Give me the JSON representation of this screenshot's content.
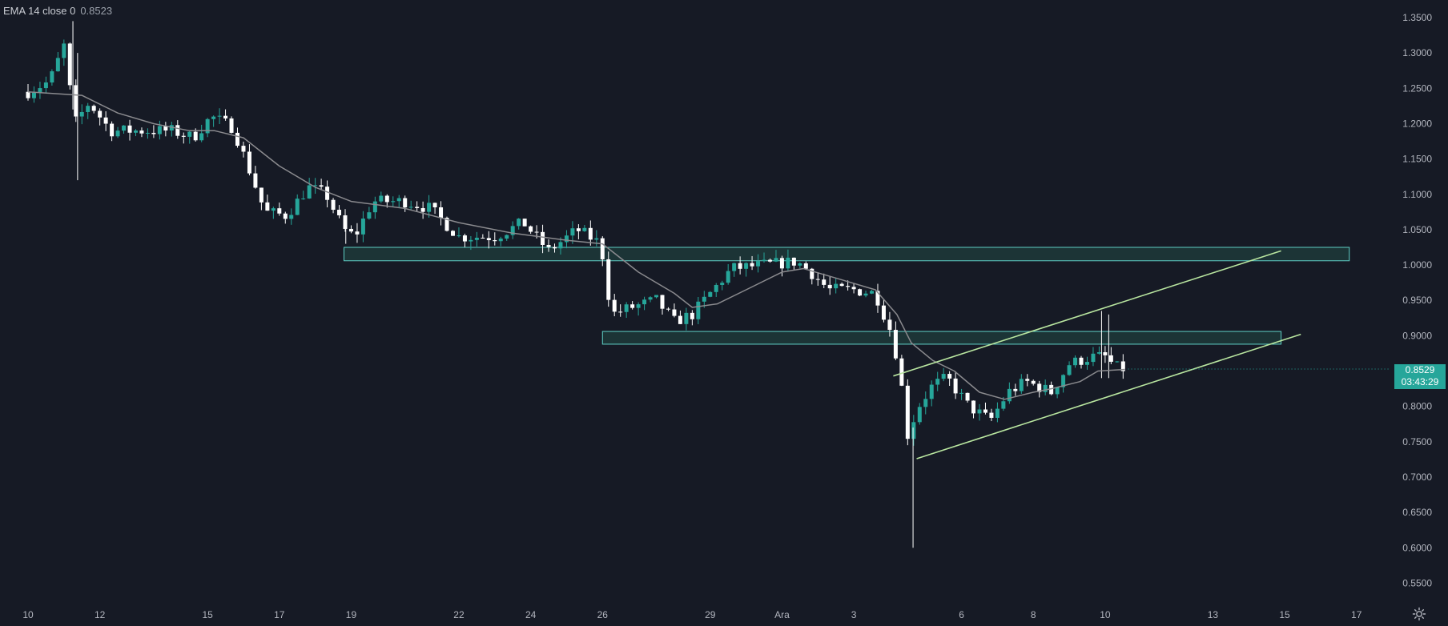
{
  "legend": {
    "indicator": "EMA 14 close 0",
    "value": "0.8523"
  },
  "current_price": {
    "price": "0.8529",
    "countdown": "03:43:29"
  },
  "colors": {
    "background": "#161a25",
    "up": "#26a69a",
    "down": "#ffffff",
    "ema": "#8a8a8e",
    "zone_fill": "#224a45",
    "zone_stroke": "#5fd0c6",
    "channel": "#b9e6a0",
    "axis_text": "#b2b5be"
  },
  "icons": {
    "settings": "settings-gear-icon"
  },
  "chart_data": {
    "type": "candlestick",
    "title": "",
    "xlabel": "",
    "ylabel": "",
    "ylim": [
      0.53,
      1.36
    ],
    "grid": false,
    "y_ticks": [
      "1.3500",
      "1.3000",
      "1.2500",
      "1.2000",
      "1.1500",
      "1.1000",
      "1.0500",
      "1.0000",
      "0.9500",
      "0.9000",
      "0.8500",
      "0.8000",
      "0.7500",
      "0.7000",
      "0.6500",
      "0.6000",
      "0.5500"
    ],
    "x_ticks": [
      {
        "label": "10",
        "day": 0
      },
      {
        "label": "12",
        "day": 2
      },
      {
        "label": "15",
        "day": 5
      },
      {
        "label": "17",
        "day": 7
      },
      {
        "label": "19",
        "day": 9
      },
      {
        "label": "22",
        "day": 12
      },
      {
        "label": "24",
        "day": 14
      },
      {
        "label": "26",
        "day": 16
      },
      {
        "label": "29",
        "day": 19
      },
      {
        "label": "Ara",
        "day": 21
      },
      {
        "label": "3",
        "day": 23
      },
      {
        "label": "6",
        "day": 26
      },
      {
        "label": "8",
        "day": 28
      },
      {
        "label": "10",
        "day": 30
      },
      {
        "label": "13",
        "day": 33
      },
      {
        "label": "15",
        "day": 35
      },
      {
        "label": "17",
        "day": 37
      }
    ],
    "x_range_days": [
      -0.25,
      38.2
    ],
    "anchors": [
      {
        "day": 0.0,
        "price": 1.245
      },
      {
        "day": 0.6,
        "price": 1.26
      },
      {
        "day": 1.0,
        "price": 1.31
      },
      {
        "day": 1.3,
        "price": 1.2
      },
      {
        "day": 1.7,
        "price": 1.23
      },
      {
        "day": 2.3,
        "price": 1.19
      },
      {
        "day": 3.0,
        "price": 1.19
      },
      {
        "day": 4.0,
        "price": 1.19
      },
      {
        "day": 4.6,
        "price": 1.18
      },
      {
        "day": 5.1,
        "price": 1.21
      },
      {
        "day": 5.7,
        "price": 1.195
      },
      {
        "day": 6.2,
        "price": 1.13
      },
      {
        "day": 6.6,
        "price": 1.075
      },
      {
        "day": 7.2,
        "price": 1.07
      },
      {
        "day": 7.8,
        "price": 1.11
      },
      {
        "day": 8.3,
        "price": 1.1
      },
      {
        "day": 8.8,
        "price": 1.05
      },
      {
        "day": 9.1,
        "price": 1.04
      },
      {
        "day": 9.6,
        "price": 1.09
      },
      {
        "day": 10.5,
        "price": 1.09
      },
      {
        "day": 11.2,
        "price": 1.08
      },
      {
        "day": 12.0,
        "price": 1.04
      },
      {
        "day": 13.0,
        "price": 1.04
      },
      {
        "day": 13.8,
        "price": 1.06
      },
      {
        "day": 14.5,
        "price": 1.02
      },
      {
        "day": 15.3,
        "price": 1.05
      },
      {
        "day": 15.95,
        "price": 1.03
      },
      {
        "day": 16.25,
        "price": 0.93
      },
      {
        "day": 16.8,
        "price": 0.94
      },
      {
        "day": 17.5,
        "price": 0.95
      },
      {
        "day": 18.0,
        "price": 0.92
      },
      {
        "day": 18.5,
        "price": 0.93
      },
      {
        "day": 19.0,
        "price": 0.96
      },
      {
        "day": 19.6,
        "price": 0.995
      },
      {
        "day": 20.5,
        "price": 1.0
      },
      {
        "day": 21.4,
        "price": 1.005
      },
      {
        "day": 21.8,
        "price": 0.99
      },
      {
        "day": 22.3,
        "price": 0.965
      },
      {
        "day": 23.0,
        "price": 0.965
      },
      {
        "day": 23.6,
        "price": 0.96
      },
      {
        "day": 24.0,
        "price": 0.91
      },
      {
        "day": 24.25,
        "price": 0.86
      },
      {
        "day": 24.5,
        "price": 0.76
      },
      {
        "day": 24.8,
        "price": 0.8
      },
      {
        "day": 25.2,
        "price": 0.83
      },
      {
        "day": 25.6,
        "price": 0.84
      },
      {
        "day": 26.2,
        "price": 0.8
      },
      {
        "day": 26.8,
        "price": 0.78
      },
      {
        "day": 27.3,
        "price": 0.82
      },
      {
        "day": 27.8,
        "price": 0.835
      },
      {
        "day": 28.5,
        "price": 0.82
      },
      {
        "day": 29.0,
        "price": 0.86
      },
      {
        "day": 29.6,
        "price": 0.87
      },
      {
        "day": 30.0,
        "price": 0.87
      },
      {
        "day": 30.3,
        "price": 0.855
      },
      {
        "day": 30.55,
        "price": 0.8529
      }
    ],
    "wick_spikes": [
      {
        "day": 1.25,
        "high": 1.345,
        "low": 1.22
      },
      {
        "day": 1.38,
        "high": 1.3,
        "low": 1.12
      },
      {
        "day": 8.85,
        "high": 1.07,
        "low": 1.03
      },
      {
        "day": 24.65,
        "high": 0.77,
        "low": 0.6
      },
      {
        "day": 29.9,
        "high": 0.935,
        "low": 0.84
      },
      {
        "day": 30.1,
        "high": 0.93,
        "low": 0.84
      }
    ],
    "ema": {
      "name": "EMA 14",
      "points": [
        {
          "day": 0,
          "price": 1.245
        },
        {
          "day": 1.5,
          "price": 1.24
        },
        {
          "day": 2.5,
          "price": 1.215
        },
        {
          "day": 3.5,
          "price": 1.2
        },
        {
          "day": 4.5,
          "price": 1.19
        },
        {
          "day": 5.2,
          "price": 1.19
        },
        {
          "day": 6.0,
          "price": 1.18
        },
        {
          "day": 7.0,
          "price": 1.14
        },
        {
          "day": 8.0,
          "price": 1.11
        },
        {
          "day": 9.0,
          "price": 1.09
        },
        {
          "day": 10.5,
          "price": 1.08
        },
        {
          "day": 12.0,
          "price": 1.06
        },
        {
          "day": 13.5,
          "price": 1.045
        },
        {
          "day": 15.0,
          "price": 1.035
        },
        {
          "day": 16.0,
          "price": 1.03
        },
        {
          "day": 17.0,
          "price": 0.99
        },
        {
          "day": 18.0,
          "price": 0.96
        },
        {
          "day": 18.5,
          "price": 0.94
        },
        {
          "day": 19.2,
          "price": 0.945
        },
        {
          "day": 20.0,
          "price": 0.965
        },
        {
          "day": 21.0,
          "price": 0.99
        },
        {
          "day": 21.6,
          "price": 0.995
        },
        {
          "day": 22.6,
          "price": 0.98
        },
        {
          "day": 23.6,
          "price": 0.965
        },
        {
          "day": 24.2,
          "price": 0.93
        },
        {
          "day": 24.6,
          "price": 0.89
        },
        {
          "day": 25.2,
          "price": 0.865
        },
        {
          "day": 25.8,
          "price": 0.85
        },
        {
          "day": 26.5,
          "price": 0.82
        },
        {
          "day": 27.2,
          "price": 0.81
        },
        {
          "day": 28.0,
          "price": 0.82
        },
        {
          "day": 28.5,
          "price": 0.825
        },
        {
          "day": 29.3,
          "price": 0.835
        },
        {
          "day": 29.8,
          "price": 0.85
        },
        {
          "day": 30.55,
          "price": 0.8523
        }
      ]
    },
    "zones": [
      {
        "name": "upper-zone",
        "from_day": 8.8,
        "to_day": 36.8,
        "top": 1.025,
        "bottom": 1.006
      },
      {
        "name": "lower-zone",
        "from_day": 16.0,
        "to_day": 34.9,
        "top": 0.906,
        "bottom": 0.888
      }
    ],
    "channel_lines": [
      {
        "name": "channel-upper",
        "from": {
          "day": 24.1,
          "price": 0.843
        },
        "to": {
          "day": 34.9,
          "price": 1.02
        }
      },
      {
        "name": "channel-lower",
        "from": {
          "day": 24.75,
          "price": 0.726
        },
        "to": {
          "day": 35.45,
          "price": 0.902
        }
      }
    ]
  }
}
